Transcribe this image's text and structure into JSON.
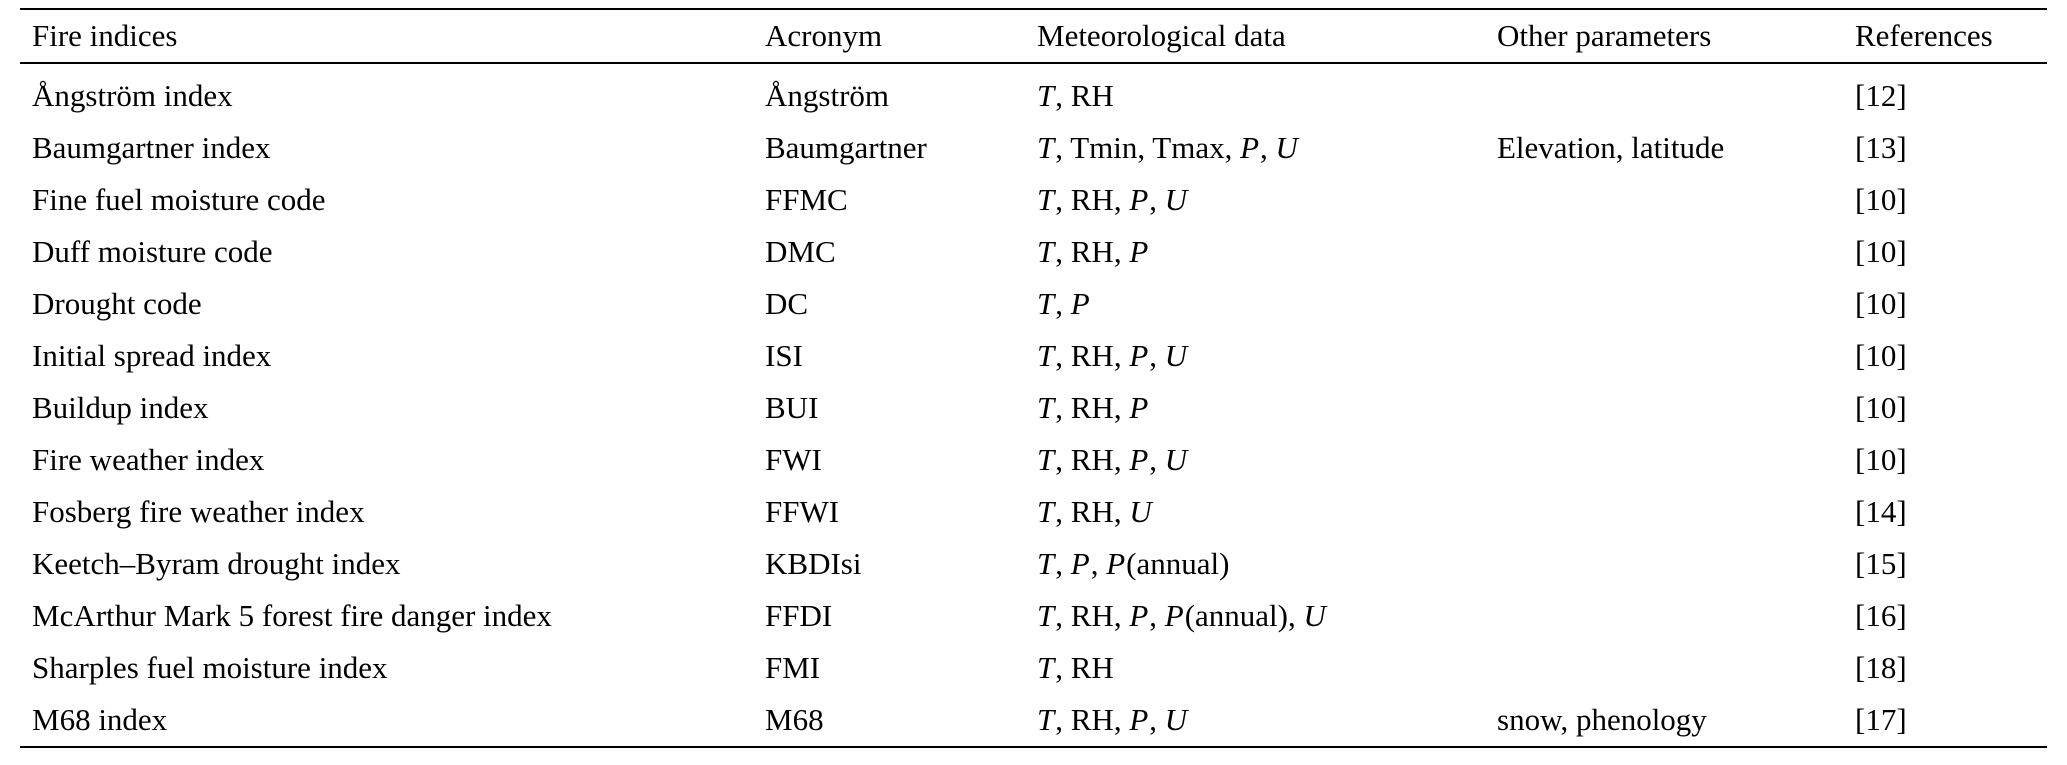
{
  "table": {
    "headers": [
      "Fire indices",
      "Acronym",
      "Meteorological data",
      "Other parameters",
      "References"
    ],
    "rows": [
      {
        "fire_index": "Ångström index",
        "acronym": "Ångström",
        "met_data": "T, RH",
        "other_params": "",
        "reference": "[12]"
      },
      {
        "fire_index": "Baumgartner index",
        "acronym": "Baumgartner",
        "met_data": "T, Tmin, Tmax, P, U",
        "other_params": "Elevation, latitude",
        "reference": "[13]"
      },
      {
        "fire_index": "Fine fuel moisture code",
        "acronym": "FFMC",
        "met_data": "T, RH, P, U",
        "other_params": "",
        "reference": "[10]"
      },
      {
        "fire_index": "Duff moisture code",
        "acronym": "DMC",
        "met_data": "T, RH, P",
        "other_params": "",
        "reference": "[10]"
      },
      {
        "fire_index": "Drought code",
        "acronym": "DC",
        "met_data": "T, P",
        "other_params": "",
        "reference": "[10]"
      },
      {
        "fire_index": "Initial spread index",
        "acronym": "ISI",
        "met_data": "T, RH, P, U",
        "other_params": "",
        "reference": "[10]"
      },
      {
        "fire_index": "Buildup index",
        "acronym": "BUI",
        "met_data": "T, RH, P",
        "other_params": "",
        "reference": "[10]"
      },
      {
        "fire_index": "Fire weather index",
        "acronym": "FWI",
        "met_data": "T, RH, P, U",
        "other_params": "",
        "reference": "[10]"
      },
      {
        "fire_index": "Fosberg fire weather index",
        "acronym": "FFWI",
        "met_data": "T, RH, U",
        "other_params": "",
        "reference": "[14]"
      },
      {
        "fire_index": "Keetch–Byram drought index",
        "acronym": "KBDIsi",
        "met_data": "T, P, P(annual)",
        "other_params": "",
        "reference": "[15]"
      },
      {
        "fire_index": "McArthur Mark 5 forest fire danger index",
        "acronym": "FFDI",
        "met_data": "T, RH, P, P(annual), U",
        "other_params": "",
        "reference": "[16]"
      },
      {
        "fire_index": "Sharples fuel moisture index",
        "acronym": "FMI",
        "met_data": "T, RH",
        "other_params": "",
        "reference": "[18]"
      },
      {
        "fire_index": "M68 index",
        "acronym": "M68",
        "met_data": "T, RH, P, U",
        "other_params": "snow, phenology",
        "reference": "[17]"
      }
    ]
  }
}
